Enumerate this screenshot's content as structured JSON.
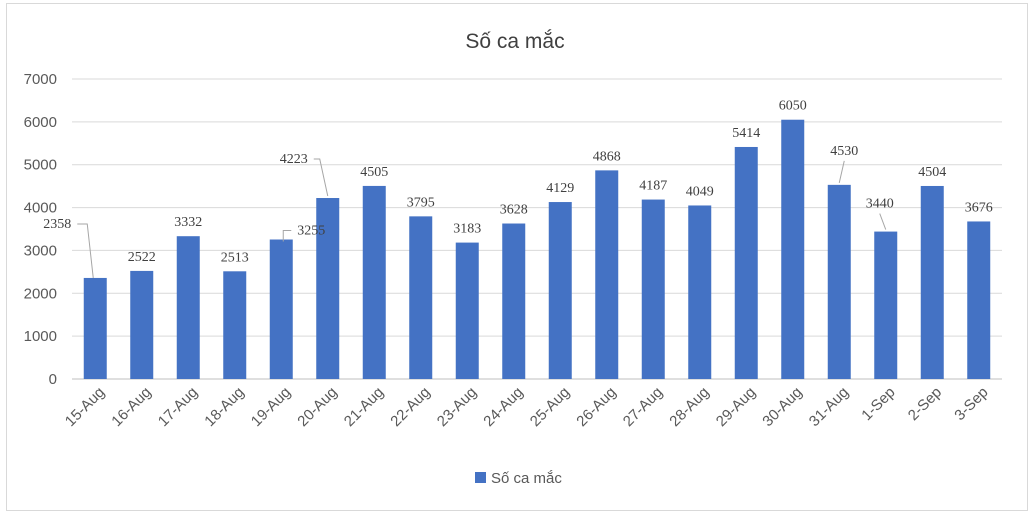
{
  "chart_data": {
    "type": "bar",
    "title": "Số ca mắc",
    "categories": [
      "15-Aug",
      "16-Aug",
      "17-Aug",
      "18-Aug",
      "19-Aug",
      "20-Aug",
      "21-Aug",
      "22-Aug",
      "23-Aug",
      "24-Aug",
      "25-Aug",
      "26-Aug",
      "27-Aug",
      "28-Aug",
      "29-Aug",
      "30-Aug",
      "31-Aug",
      "1-Sep",
      "2-Sep",
      "3-Sep"
    ],
    "series": [
      {
        "name": "Số ca mắc",
        "values": [
          2358,
          2522,
          3332,
          2513,
          3255,
          4223,
          4505,
          3795,
          3183,
          3628,
          4129,
          4868,
          4187,
          4049,
          5414,
          6050,
          4530,
          3440,
          4504,
          3676
        ]
      }
    ],
    "data_labels": [
      "2358",
      "2522",
      "3332",
      "2513",
      "3255",
      "4223",
      "4505",
      "3795",
      "3183",
      "3628",
      "4129",
      "4868",
      "4187",
      "4049",
      "5414",
      "6050",
      "4530",
      "3440",
      "4504",
      "3676"
    ],
    "yticks": [
      "0",
      "1000",
      "2000",
      "3000",
      "4000",
      "5000",
      "6000",
      "7000"
    ],
    "ylim": [
      0,
      7000
    ],
    "xlabel": "",
    "ylabel": "",
    "grid": true,
    "legend_position": "bottom",
    "colors": {
      "bar": "#4472c4",
      "grid": "#d9d9d9",
      "leader": "#a6a6a6"
    }
  }
}
